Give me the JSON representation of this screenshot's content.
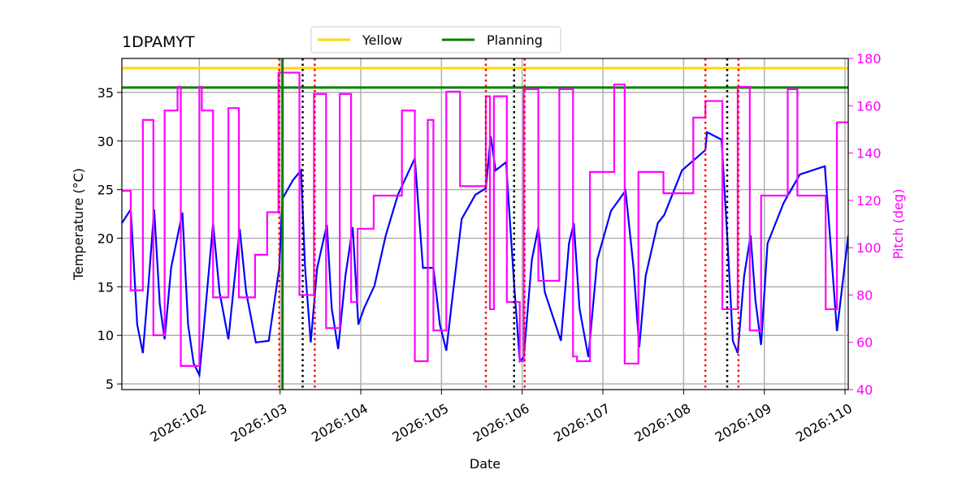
{
  "chart_data": {
    "type": "line",
    "title": "1DPAMYT",
    "xlabel": "Date",
    "ylabel": "Temperature (°C)",
    "y2label": "Pitch (deg)",
    "y2color": "magenta",
    "xlim": [
      101.04,
      110.04
    ],
    "xticks": [
      {
        "value": 102,
        "label": "2026:102"
      },
      {
        "value": 103,
        "label": "2026:103"
      },
      {
        "value": 104,
        "label": "2026:104"
      },
      {
        "value": 105,
        "label": "2026:105"
      },
      {
        "value": 106,
        "label": "2026:106"
      },
      {
        "value": 107,
        "label": "2026:107"
      },
      {
        "value": 108,
        "label": "2026:108"
      },
      {
        "value": 109,
        "label": "2026:109"
      },
      {
        "value": 110,
        "label": "2026:110"
      }
    ],
    "ylim": [
      4.42,
      38.5
    ],
    "yticks": [
      5,
      10,
      15,
      20,
      25,
      30,
      35
    ],
    "y2lim": [
      40,
      180
    ],
    "y2ticks": [
      40,
      60,
      80,
      100,
      120,
      140,
      160,
      180
    ],
    "grid": true,
    "legend": "upper center",
    "hlines": [
      {
        "name": "Yellow",
        "color": "gold",
        "value": 37.5
      },
      {
        "name": "Planning",
        "color": "green",
        "value": 35.5
      }
    ],
    "vlines": [
      {
        "x": 102.99,
        "color": "red",
        "style": "dotted"
      },
      {
        "x": 103.43,
        "color": "red",
        "style": "dotted"
      },
      {
        "x": 105.55,
        "color": "red",
        "style": "dotted"
      },
      {
        "x": 106.03,
        "color": "red",
        "style": "dotted"
      },
      {
        "x": 108.27,
        "color": "red",
        "style": "dotted"
      },
      {
        "x": 108.68,
        "color": "red",
        "style": "dotted"
      },
      {
        "x": 103.28,
        "color": "black",
        "style": "dotted"
      },
      {
        "x": 105.9,
        "color": "black",
        "style": "dotted"
      },
      {
        "x": 108.54,
        "color": "black",
        "style": "dotted"
      },
      {
        "x": 103.03,
        "color": "green",
        "style": "solid"
      }
    ],
    "series": [
      {
        "color": "blue",
        "drawstyle": "default",
        "x": [
          101.04,
          101.15,
          101.23,
          101.3,
          101.37,
          101.44,
          101.51,
          101.57,
          101.65,
          101.79,
          101.86,
          101.93,
          102.0,
          102.05,
          102.17,
          102.25,
          102.36,
          102.5,
          102.58,
          102.7,
          102.86,
          102.99,
          103.03,
          103.16,
          103.26,
          103.31,
          103.38,
          103.46,
          103.58,
          103.64,
          103.72,
          103.81,
          103.9,
          103.97,
          104.04,
          104.17,
          104.31,
          104.46,
          104.67,
          104.77,
          104.9,
          104.98,
          105.06,
          105.12,
          105.25,
          105.42,
          105.55,
          105.61,
          105.67,
          105.8,
          105.9,
          105.97,
          106.02,
          106.12,
          106.2,
          106.28,
          106.48,
          106.58,
          106.64,
          106.71,
          106.82,
          106.93,
          107.1,
          107.28,
          107.38,
          107.45,
          107.53,
          107.68,
          107.76,
          107.98,
          108.27,
          108.29,
          108.47,
          108.54,
          108.61,
          108.67,
          108.75,
          108.83,
          108.89,
          108.96,
          109.04,
          109.24,
          109.44,
          109.75,
          109.9,
          110.04
        ],
        "values": [
          21.55,
          22.97,
          11.11,
          8.18,
          15.28,
          22.97,
          13.2,
          9.6,
          16.95,
          22.64,
          11.11,
          7.1,
          5.93,
          10.27,
          21.55,
          14.45,
          9.6,
          20.96,
          14.45,
          9.27,
          9.44,
          16.95,
          24.06,
          25.98,
          26.98,
          16.95,
          9.27,
          16.95,
          21.38,
          12.78,
          8.6,
          16.12,
          21.13,
          11.11,
          12.78,
          15.12,
          20.3,
          24.47,
          28.23,
          16.95,
          16.95,
          11.11,
          8.43,
          12.78,
          21.97,
          24.47,
          25.14,
          30.49,
          26.98,
          27.82,
          15.28,
          7.35,
          7.77,
          17.79,
          21.13,
          14.45,
          9.44,
          19.46,
          21.55,
          12.78,
          7.77,
          17.79,
          22.8,
          24.89,
          16.95,
          8.77,
          16.12,
          21.55,
          22.39,
          26.98,
          29.07,
          30.91,
          30.15,
          20.3,
          9.44,
          8.18,
          16.12,
          20.3,
          13.61,
          9.02,
          19.46,
          23.64,
          26.56,
          27.4,
          10.44,
          20.3
        ]
      },
      {
        "color": "magenta",
        "axis": "y2",
        "drawstyle": "steps-post",
        "x": [
          101.04,
          101.15,
          101.3,
          101.43,
          101.57,
          101.73,
          101.77,
          102.0,
          102.03,
          102.17,
          102.36,
          102.49,
          102.69,
          102.84,
          102.98,
          103.24,
          103.42,
          103.57,
          103.74,
          103.88,
          103.96,
          104.16,
          104.51,
          104.67,
          104.83,
          104.9,
          105.06,
          105.23,
          105.55,
          105.6,
          105.65,
          105.81,
          105.97,
          106.02,
          106.2,
          106.46,
          106.63,
          106.68,
          106.84,
          107.14,
          107.27,
          107.44,
          107.75,
          108.12,
          108.27,
          108.48,
          108.67,
          108.82,
          108.96,
          109.29,
          109.41,
          109.76,
          109.9,
          110.04
        ],
        "values": [
          124,
          82,
          154,
          63,
          158,
          168,
          50,
          168,
          158,
          79,
          159,
          79,
          97,
          115,
          174,
          80,
          165,
          66,
          165,
          77,
          108,
          122,
          158,
          52,
          154,
          65,
          166,
          126,
          164,
          74,
          164,
          77,
          52,
          167,
          86,
          167,
          54,
          52,
          132,
          169,
          51,
          132,
          123,
          155,
          162,
          74,
          168,
          65,
          122,
          167,
          122,
          74,
          153,
          153
        ]
      }
    ]
  }
}
